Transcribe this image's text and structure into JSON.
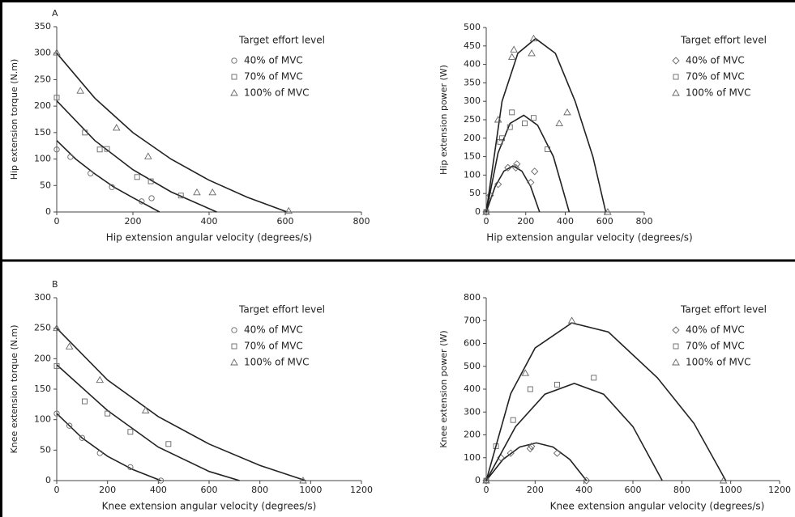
{
  "chart_data": [
    {
      "type": "scatter",
      "title": "A",
      "x_label": "Hip extension angular velocity (degrees/s)",
      "y_label": "Hip extension torque (N.m)",
      "legend_title": "Target effort level",
      "xlim": [
        0,
        800
      ],
      "xticks": [
        0,
        200,
        400,
        600,
        800
      ],
      "ylim": [
        0,
        350
      ],
      "yticks": [
        0,
        50,
        100,
        150,
        200,
        250,
        300,
        350
      ],
      "series": [
        {
          "name": "40% of MVC",
          "marker": "circle",
          "x": [
            0,
            36,
            89,
            145,
            223,
            249
          ],
          "values": [
            118,
            104,
            73,
            47,
            20,
            26
          ],
          "fit": {
            "x": [
              0,
              50,
              100,
              150,
              200,
              270
            ],
            "values": [
              135,
              100,
              72,
              47,
              27,
              0
            ]
          }
        },
        {
          "name": "70% of MVC",
          "marker": "square",
          "x": [
            0,
            74,
            113,
            132,
            211,
            247,
            326
          ],
          "values": [
            216,
            150,
            118,
            119,
            66,
            58,
            31
          ],
          "fit": {
            "x": [
              0,
              100,
              200,
              300,
              420
            ],
            "values": [
              210,
              135,
              80,
              38,
              0
            ]
          }
        },
        {
          "name": "100% of MVC",
          "marker": "triangle",
          "x": [
            0,
            62,
            157,
            240,
            368,
            409,
            609
          ],
          "values": [
            301,
            229,
            159,
            105,
            37,
            37,
            2
          ],
          "fit": {
            "x": [
              0,
              100,
              200,
              300,
              400,
              500,
              605
            ],
            "values": [
              300,
              215,
              150,
              100,
              60,
              28,
              0
            ]
          }
        }
      ]
    },
    {
      "type": "scatter",
      "x_label": "Hip extension angular velocity (degrees/s)",
      "y_label": "Hip extension power (W)",
      "legend_title": "Target effort level",
      "xlim": [
        0,
        800
      ],
      "xticks": [
        0,
        200,
        400,
        600,
        800
      ],
      "ylim": [
        0,
        500
      ],
      "yticks": [
        0,
        50,
        100,
        150,
        200,
        250,
        300,
        350,
        400,
        450,
        500
      ],
      "series": [
        {
          "name": "40% of MVC",
          "marker": "diamond",
          "x": [
            0,
            20,
            60,
            110,
            150,
            155,
            225,
            245
          ],
          "values": [
            0,
            45,
            75,
            120,
            120,
            130,
            80,
            110
          ],
          "fit": {
            "x": [
              0,
              45,
              90,
              135,
              180,
              225,
              270
            ],
            "values": [
              0,
              69,
              111,
              125,
              111,
              69,
              0
            ]
          }
        },
        {
          "name": "70% of MVC",
          "marker": "square",
          "x": [
            0,
            70,
            80,
            120,
            130,
            195,
            240,
            310
          ],
          "values": [
            0,
            190,
            200,
            230,
            270,
            240,
            255,
            170
          ],
          "fit": {
            "x": [
              0,
              60,
              120,
              190,
              260,
              340,
              420
            ],
            "values": [
              0,
              160,
              240,
              262,
              235,
              150,
              0
            ]
          }
        },
        {
          "name": "100% of MVC",
          "marker": "triangle",
          "x": [
            0,
            60,
            130,
            140,
            240,
            230,
            370,
            410,
            615
          ],
          "values": [
            0,
            250,
            420,
            440,
            470,
            430,
            240,
            270,
            0
          ],
          "fit": {
            "x": [
              0,
              80,
              160,
              250,
              350,
              450,
              540,
              605
            ],
            "values": [
              0,
              300,
              430,
              470,
              430,
              300,
              150,
              0
            ]
          }
        }
      ]
    },
    {
      "type": "scatter",
      "title": "B",
      "x_label": "Knee extension angular velocity (degrees/s)",
      "y_label": "Knee extension torque (N.m)",
      "legend_title": "Target effort level",
      "xlim": [
        0,
        1200
      ],
      "xticks": [
        0,
        200,
        400,
        600,
        800,
        1000,
        1200
      ],
      "ylim": [
        0,
        300
      ],
      "yticks": [
        0,
        50,
        100,
        150,
        200,
        250,
        300
      ],
      "series": [
        {
          "name": "40% of MVC",
          "marker": "circle",
          "x": [
            0,
            50,
            100,
            170,
            290,
            410
          ],
          "values": [
            110,
            90,
            70,
            45,
            22,
            0
          ],
          "fit": {
            "x": [
              0,
              100,
              200,
              300,
              410
            ],
            "values": [
              110,
              70,
              40,
              18,
              0
            ]
          }
        },
        {
          "name": "70% of MVC",
          "marker": "square",
          "x": [
            0,
            110,
            200,
            290,
            440
          ],
          "values": [
            188,
            130,
            110,
            80,
            60
          ],
          "fit": {
            "x": [
              0,
              200,
              400,
              600,
              720
            ],
            "values": [
              190,
              115,
              55,
              15,
              0
            ]
          }
        },
        {
          "name": "100% of MVC",
          "marker": "triangle",
          "x": [
            0,
            50,
            170,
            350,
            970
          ],
          "values": [
            250,
            220,
            165,
            115,
            0
          ],
          "fit": {
            "x": [
              0,
              200,
              400,
              600,
              800,
              980
            ],
            "values": [
              250,
              165,
              105,
              60,
              25,
              0
            ]
          }
        }
      ]
    },
    {
      "type": "scatter",
      "x_label": "Knee extension angular velocity (degrees/s)",
      "y_label": "Knee extension power (W)",
      "legend_title": "Target effort level",
      "xlim": [
        0,
        1200
      ],
      "xticks": [
        0,
        200,
        400,
        600,
        800,
        1000,
        1200
      ],
      "ylim": [
        0,
        800
      ],
      "yticks": [
        0,
        100,
        200,
        300,
        400,
        500,
        600,
        700,
        800
      ],
      "series": [
        {
          "name": "40% of MVC",
          "marker": "diamond",
          "x": [
            0,
            60,
            100,
            180,
            185,
            290,
            410
          ],
          "values": [
            0,
            100,
            120,
            140,
            150,
            120,
            0
          ],
          "fit": {
            "x": [
              0,
              68,
              137,
              205,
              273,
              342,
              410
            ],
            "values": [
              0,
              92,
              147,
              165,
              147,
              92,
              0
            ]
          }
        },
        {
          "name": "70% of MVC",
          "marker": "square",
          "x": [
            0,
            40,
            110,
            180,
            290,
            440
          ],
          "values": [
            0,
            150,
            265,
            400,
            420,
            450
          ],
          "fit": {
            "x": [
              0,
              120,
              240,
              360,
              480,
              600,
              720
            ],
            "values": [
              0,
              236,
              378,
              425,
              378,
              236,
              0
            ]
          }
        },
        {
          "name": "100% of MVC",
          "marker": "triangle",
          "x": [
            0,
            160,
            350,
            970
          ],
          "values": [
            0,
            470,
            700,
            0
          ],
          "fit": {
            "x": [
              0,
              100,
              200,
              350,
              500,
              700,
              850,
              980
            ],
            "values": [
              0,
              380,
              580,
              690,
              650,
              450,
              250,
              0
            ]
          }
        }
      ]
    }
  ]
}
